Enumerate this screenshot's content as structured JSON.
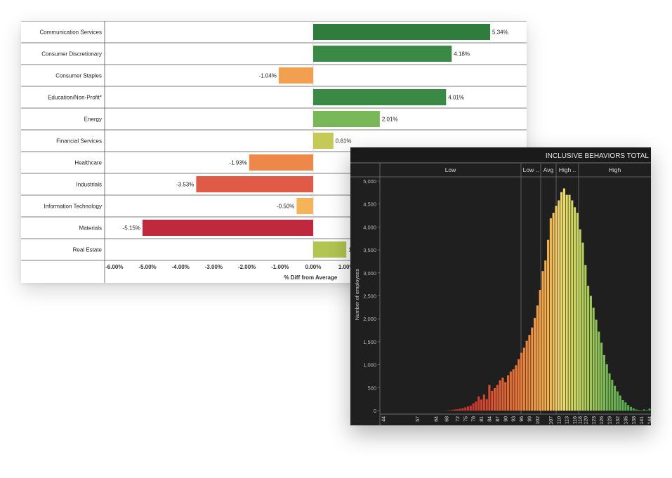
{
  "bar_chart": {
    "x_ticks": [
      "-6.00%",
      "-5.00%",
      "-4.00%",
      "-3.00%",
      "-2.00%",
      "-1.00%",
      "0.00%",
      "1.00%"
    ],
    "x_axis_title": "% Diff from Average"
  },
  "histogram": {
    "title": "INCLUSIVE BEHAVIORS TOTAL",
    "band_labels": [
      "Low",
      "Low ..",
      "Avg",
      "High ..",
      "High"
    ],
    "y_axis_title": "Number of employees",
    "y_ticks": [
      "5,000",
      "4,500",
      "4,000",
      "3,500",
      "3,000",
      "2,500",
      "2,000",
      "1,500",
      "1,000",
      "500",
      "0"
    ],
    "x_ticks": [
      "44",
      "57",
      "64",
      "68",
      "72",
      "75",
      "78",
      "81",
      "84",
      "87",
      "90",
      "93",
      "96",
      "99",
      "102",
      "107",
      "110",
      "113",
      "116",
      "118",
      "120",
      "123",
      "126",
      "129",
      "132",
      "135",
      "138",
      "141",
      "144"
    ]
  },
  "chart_data": [
    {
      "type": "bar",
      "orientation": "horizontal",
      "categories": [
        "Communication Services",
        "Consumer Discretionary",
        "Consumer Staples",
        "Education/Non-Profit*",
        "Energy",
        "Financial Services",
        "Healthcare",
        "Industrials",
        "Information Technology",
        "Materials",
        "Real Estate"
      ],
      "values": [
        5.34,
        4.18,
        -1.04,
        4.01,
        2.01,
        0.61,
        -1.93,
        -3.53,
        -0.5,
        -5.15,
        1.0
      ],
      "value_labels": [
        "5.34%",
        "4.18%",
        "-1.04%",
        "4.01%",
        "2.01%",
        "0.61%",
        "-1.93%",
        "-3.53%",
        "-0.50%",
        "-5.15%",
        "1"
      ],
      "colors": [
        "#2e7d3d",
        "#3a8a45",
        "#f2a050",
        "#3a8a45",
        "#78b858",
        "#c5c955",
        "#ee8848",
        "#e05a48",
        "#f5b45a",
        "#c0283e",
        "#b2c452"
      ],
      "xlabel": "% Diff from Average",
      "xlim": [
        -6.5,
        1.1
      ]
    },
    {
      "type": "bar",
      "subtype": "histogram",
      "title": "INCLUSIVE BEHAVIORS TOTAL",
      "ylabel": "Number of employees",
      "ylim": [
        0,
        5000
      ],
      "bins": [
        44,
        45,
        46,
        47,
        48,
        49,
        50,
        51,
        52,
        53,
        54,
        55,
        56,
        57,
        58,
        59,
        60,
        61,
        62,
        63,
        64,
        65,
        66,
        67,
        68,
        69,
        70,
        71,
        72,
        73,
        74,
        75,
        76,
        77,
        78,
        79,
        80,
        81,
        82,
        83,
        84,
        85,
        86,
        87,
        88,
        89,
        90,
        91,
        92,
        93,
        94,
        95,
        96,
        97,
        98,
        99,
        100,
        101,
        102,
        103,
        104,
        105,
        106,
        107,
        108,
        109,
        110,
        111,
        112,
        113,
        114,
        115,
        116,
        117,
        118,
        119,
        120,
        121,
        122,
        123,
        124,
        125,
        126,
        127,
        128,
        129,
        130,
        131,
        132,
        133,
        134,
        135,
        136,
        137,
        138,
        139,
        140,
        141,
        142,
        143,
        144
      ],
      "values": [
        0,
        0,
        0,
        0,
        0,
        0,
        0,
        0,
        0,
        0,
        0,
        0,
        0,
        0,
        0,
        0,
        0,
        0,
        0,
        0,
        0,
        0,
        0,
        0,
        5,
        10,
        15,
        25,
        30,
        40,
        55,
        70,
        90,
        110,
        160,
        200,
        310,
        240,
        350,
        250,
        560,
        430,
        490,
        560,
        660,
        720,
        620,
        770,
        850,
        900,
        990,
        1120,
        1260,
        1370,
        1520,
        1650,
        1810,
        2020,
        2290,
        2630,
        3040,
        3270,
        3720,
        4190,
        4310,
        4460,
        4580,
        4760,
        4840,
        4700,
        4700,
        4580,
        4430,
        4310,
        3950,
        3660,
        3170,
        2720,
        2500,
        2240,
        1980,
        1720,
        1480,
        1210,
        1010,
        810,
        670,
        540,
        420,
        330,
        230,
        180,
        120,
        80,
        50,
        25,
        15,
        10,
        25,
        10,
        45
      ]
    }
  ]
}
